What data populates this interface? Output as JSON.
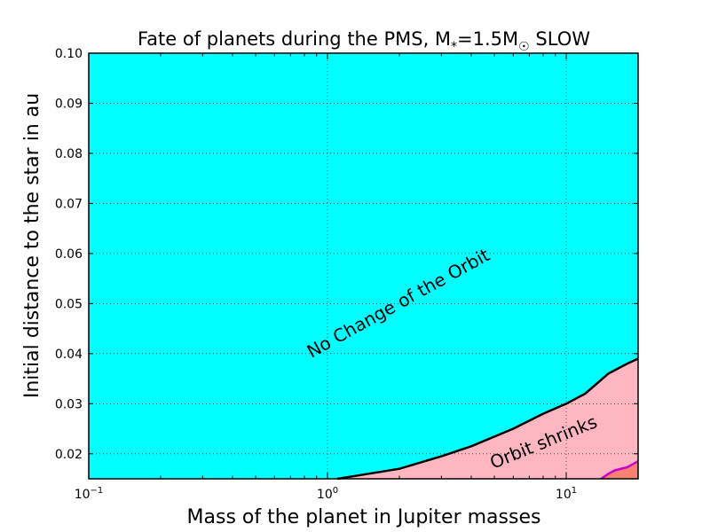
{
  "chart_data": {
    "type": "area",
    "title_prefix": "Fate of planets during the PMS, M",
    "title_star_sub": "*",
    "title_mid": "=1.5M",
    "title_sun_sub": "☉",
    "title_suffix": " SLOW",
    "xlabel": "Mass of the planet in Jupiter masses",
    "ylabel": "Initial distance to the star in au",
    "xscale": "log",
    "xlim": [
      0.1,
      20
    ],
    "ylim": [
      0.015,
      0.1
    ],
    "grid": true,
    "x_ticks": [
      {
        "value": 0.1,
        "base": "10",
        "exp": "−1"
      },
      {
        "value": 1,
        "base": "10",
        "exp": "0"
      },
      {
        "value": 10,
        "base": "10",
        "exp": "1"
      }
    ],
    "y_ticks": [
      {
        "value": 0.02,
        "label": "0.02"
      },
      {
        "value": 0.03,
        "label": "0.03"
      },
      {
        "value": 0.04,
        "label": "0.04"
      },
      {
        "value": 0.05,
        "label": "0.05"
      },
      {
        "value": 0.06,
        "label": "0.06"
      },
      {
        "value": 0.07,
        "label": "0.07"
      },
      {
        "value": 0.08,
        "label": "0.08"
      },
      {
        "value": 0.09,
        "label": "0.09"
      },
      {
        "value": 0.1,
        "label": "0.10"
      }
    ],
    "regions": [
      {
        "label": "No Change of the Orbit",
        "color": "#00ffff"
      },
      {
        "label": "Orbit shrinks",
        "color": "#ffb6c1"
      },
      {
        "label": "",
        "color": "#fa8072"
      }
    ],
    "boundary_shrink": {
      "color": "#000000",
      "x": [
        1.1,
        2.0,
        3.0,
        4.0,
        6.0,
        8.0,
        10.0,
        12.0,
        15.0,
        18.0,
        20.0
      ],
      "y": [
        0.015,
        0.017,
        0.0195,
        0.0215,
        0.025,
        0.028,
        0.03,
        0.032,
        0.036,
        0.038,
        0.039
      ]
    },
    "boundary_inner": {
      "color": "#cc00cc",
      "x": [
        14.0,
        15.0,
        16.0,
        18.0,
        20.0
      ],
      "y": [
        0.015,
        0.016,
        0.0167,
        0.0173,
        0.0185
      ]
    }
  }
}
